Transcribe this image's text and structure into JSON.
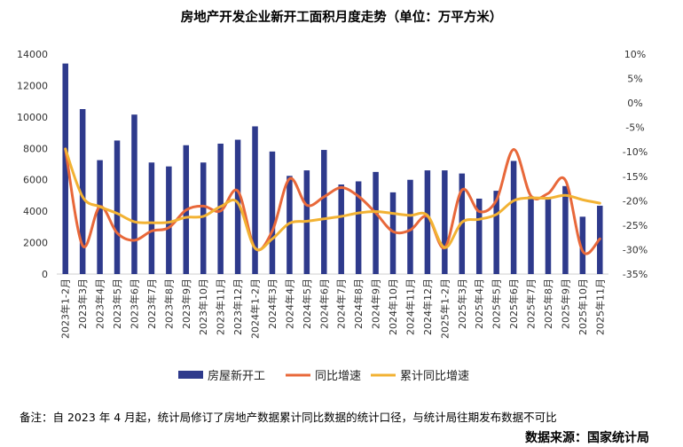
{
  "chart_data": {
    "type": "bar",
    "title": "房地产开发企业新开工面积月度走势（单位：万平方米）",
    "categories": [
      "2023年1-2月",
      "2023年3月",
      "2023年4月",
      "2023年5月",
      "2023年6月",
      "2023年7月",
      "2023年8月",
      "2023年9月",
      "2023年10月",
      "2023年11月",
      "2023年12月",
      "2024年1-2月",
      "2024年3月",
      "2024年4月",
      "2024年5月",
      "2024年6月",
      "2024年7月",
      "2024年8月",
      "2024年9月",
      "2024年10月",
      "2024年11月",
      "2024年12月",
      "2025年1-2月",
      "2025年3月",
      "2025年4月",
      "2025年5月",
      "2025年6月",
      "2025年7月",
      "2025年8月",
      "2025年9月",
      "2025年10月",
      "2025年11月"
    ],
    "series": [
      {
        "name": "房屋新开工",
        "kind": "bar",
        "axis": "left",
        "color": "#2E3A8C",
        "values": [
          13400,
          10500,
          7250,
          8500,
          10150,
          7100,
          6850,
          8200,
          7100,
          8300,
          8550,
          9400,
          7800,
          6250,
          6600,
          7900,
          5700,
          5900,
          6500,
          5200,
          6000,
          6600,
          6600,
          6400,
          4800,
          5300,
          7200,
          4950,
          4900,
          5600,
          3650,
          4350
        ]
      },
      {
        "name": "同比增速",
        "kind": "line",
        "axis": "right",
        "color": "#E8683A",
        "values": [
          -9.4,
          -29.2,
          -21.2,
          -26.6,
          -28.1,
          -26.2,
          -25.5,
          -21.9,
          -21.1,
          -22.1,
          -18.0,
          -29.7,
          -26.2,
          -15.5,
          -20.9,
          -19.2,
          -17.3,
          -19.1,
          -22.5,
          -26.3,
          -26.0,
          -23.2,
          -29.6,
          -17.8,
          -22.2,
          -19.9,
          -9.5,
          -19.0,
          -18.5,
          -15.8,
          -30.3,
          -27.8
        ]
      },
      {
        "name": "累计同比增速",
        "kind": "line",
        "axis": "right",
        "color": "#F2B233",
        "values": [
          -9.4,
          -19.2,
          -21.2,
          -22.6,
          -24.3,
          -24.5,
          -24.4,
          -23.4,
          -23.2,
          -21.2,
          -20.4,
          -29.7,
          -27.8,
          -24.6,
          -24.2,
          -23.7,
          -23.2,
          -22.5,
          -22.2,
          -22.6,
          -23.0,
          -23.0,
          -29.6,
          -24.4,
          -23.8,
          -22.8,
          -20.0,
          -19.4,
          -19.5,
          -18.9,
          -19.8,
          -20.5
        ]
      }
    ],
    "left_axis": {
      "ylim": [
        0,
        14000
      ],
      "ticks": [
        0,
        2000,
        4000,
        6000,
        8000,
        10000,
        12000,
        14000
      ]
    },
    "right_axis": {
      "ylim": [
        -35,
        10
      ],
      "ticks": [
        "10%",
        "5%",
        "0%",
        "-5%",
        "-10%",
        "-15%",
        "-20%",
        "-25%",
        "-30%",
        "-35%"
      ]
    },
    "legend_position": "bottom"
  },
  "note": "备注：自 2023 年 4 月起，统计局修订了房地产数据累计同比数据的统计口径，与统计局往期发布数据不可比",
  "source": "数据来源：国家统计局"
}
